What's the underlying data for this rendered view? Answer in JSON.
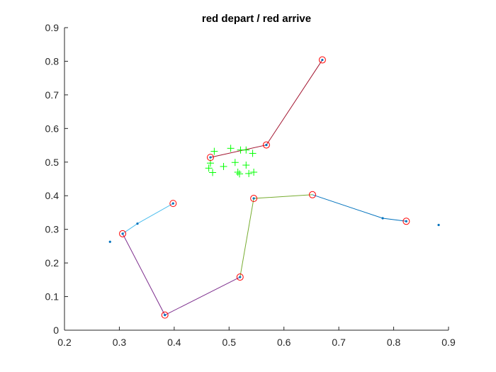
{
  "chart_data": {
    "type": "scatter",
    "title": "red depart / red arrive",
    "xlabel": "",
    "ylabel": "",
    "xlim": [
      0.2,
      0.9
    ],
    "ylim": [
      0,
      0.9
    ],
    "grid": false,
    "x_ticks": [
      "0.2",
      "0.3",
      "0.4",
      "0.5",
      "0.6",
      "0.7",
      "0.8",
      "0.9"
    ],
    "y_ticks": [
      "0",
      "0.1",
      "0.2",
      "0.3",
      "0.4",
      "0.5",
      "0.6",
      "0.7",
      "0.8",
      "0.9"
    ],
    "colors": {
      "axis": "#262626",
      "marker_circle": "#ff0000",
      "marker_dot": "#0072bd",
      "marker_plus": "#00ff00"
    },
    "routes": [
      {
        "color": "#a2142f",
        "points": [
          [
            0.466,
            0.514
          ],
          [
            0.568,
            0.551
          ],
          [
            0.67,
            0.804
          ]
        ]
      },
      {
        "color": "#4dbeee",
        "points": [
          [
            0.306,
            0.287
          ],
          [
            0.333,
            0.317
          ],
          [
            0.398,
            0.377
          ]
        ]
      },
      {
        "color": "#7e2f8e",
        "points": [
          [
            0.306,
            0.287
          ],
          [
            0.383,
            0.045
          ],
          [
            0.52,
            0.158
          ]
        ]
      },
      {
        "color": "#77ac30",
        "points": [
          [
            0.52,
            0.158
          ],
          [
            0.545,
            0.392
          ],
          [
            0.652,
            0.403
          ]
        ]
      },
      {
        "color": "#0072bd",
        "points": [
          [
            0.652,
            0.403
          ],
          [
            0.78,
            0.333
          ],
          [
            0.823,
            0.324
          ]
        ]
      }
    ],
    "circle_points": [
      [
        0.466,
        0.514
      ],
      [
        0.568,
        0.551
      ],
      [
        0.67,
        0.804
      ],
      [
        0.398,
        0.377
      ],
      [
        0.306,
        0.287
      ],
      [
        0.383,
        0.045
      ],
      [
        0.52,
        0.158
      ],
      [
        0.545,
        0.392
      ],
      [
        0.652,
        0.403
      ],
      [
        0.823,
        0.324
      ]
    ],
    "dot_points": [
      [
        0.283,
        0.263
      ],
      [
        0.333,
        0.317
      ],
      [
        0.398,
        0.377
      ],
      [
        0.306,
        0.287
      ],
      [
        0.383,
        0.045
      ],
      [
        0.52,
        0.158
      ],
      [
        0.545,
        0.392
      ],
      [
        0.568,
        0.551
      ],
      [
        0.67,
        0.804
      ],
      [
        0.466,
        0.514
      ],
      [
        0.78,
        0.333
      ],
      [
        0.823,
        0.324
      ],
      [
        0.882,
        0.313
      ]
    ],
    "plus_points": [
      [
        0.463,
        0.482
      ],
      [
        0.466,
        0.497
      ],
      [
        0.47,
        0.469
      ],
      [
        0.473,
        0.532
      ],
      [
        0.49,
        0.487
      ],
      [
        0.503,
        0.541
      ],
      [
        0.511,
        0.499
      ],
      [
        0.516,
        0.47
      ],
      [
        0.519,
        0.465
      ],
      [
        0.521,
        0.536
      ],
      [
        0.531,
        0.536
      ],
      [
        0.531,
        0.491
      ],
      [
        0.536,
        0.466
      ],
      [
        0.545,
        0.47
      ],
      [
        0.543,
        0.526
      ]
    ]
  }
}
